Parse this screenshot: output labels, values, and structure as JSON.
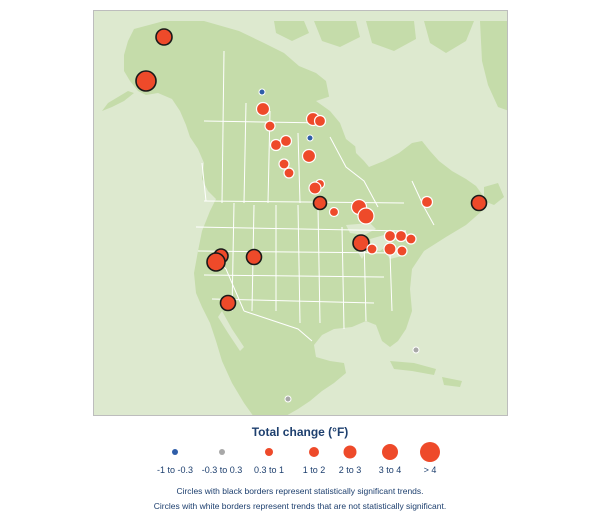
{
  "legend": {
    "title": "Total change (°F)",
    "items": [
      {
        "label": "-1 to -0.3",
        "color": "#2e5da8",
        "size": "tiny"
      },
      {
        "label": "-0.3 to 0.3",
        "color": "#a8a8a8",
        "size": "tiny"
      },
      {
        "label": "0.3 to 1",
        "color": "#ee4a2a",
        "size": "small"
      },
      {
        "label": "1 to 2",
        "color": "#ee4a2a",
        "size": "medium"
      },
      {
        "label": "2 to 3",
        "color": "#ee4a2a",
        "size": "large"
      },
      {
        "label": "3 to 4",
        "color": "#ee4a2a",
        "size": "x-large"
      },
      {
        "label": "> 4",
        "color": "#ee4a2a",
        "size": "xx-large"
      }
    ],
    "note_significant": "Circles with black borders represent statistically significant trends.",
    "note_not_significant": "Circles with white borders represent trends that are not statistically significant."
  },
  "colors": {
    "land": "#c5dcaa",
    "water": "#dde9cf",
    "border": "#ffffff",
    "warming": "#ee4a2a",
    "cooling": "#2e5da8",
    "neutral": "#a8a8a8"
  }
}
